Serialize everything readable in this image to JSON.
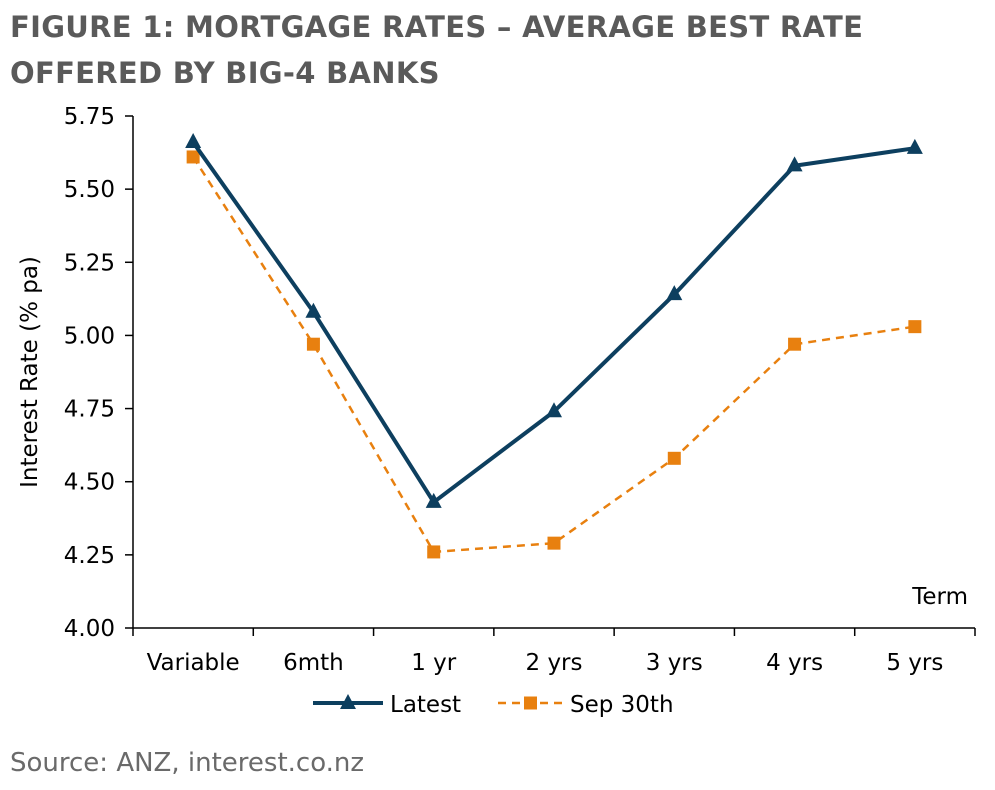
{
  "title": "FIGURE 1: MORTGAGE RATES – AVERAGE BEST RATE OFFERED BY BIG-4 BANKS",
  "source": "Source: ANZ, interest.co.nz",
  "colors": {
    "latest": "#0d3f5f",
    "sep30": "#e8800f",
    "axis": "#000000"
  },
  "chart_data": {
    "type": "line",
    "title": "FIGURE 1: MORTGAGE RATES – AVERAGE BEST RATE OFFERED BY BIG-4 BANKS",
    "xlabel": "Term",
    "ylabel": "Interest Rate (% pa)",
    "categories": [
      "Variable",
      "6mth",
      "1 yr",
      "2 yrs",
      "3 yrs",
      "4 yrs",
      "5 yrs"
    ],
    "ylim": [
      4.0,
      5.75
    ],
    "yticks": [
      "4.00",
      "4.25",
      "4.50",
      "4.75",
      "5.00",
      "5.25",
      "5.50",
      "5.75"
    ],
    "grid": false,
    "legend_position": "bottom",
    "series": [
      {
        "name": "Latest",
        "marker": "triangle",
        "style": "solid",
        "values": [
          5.66,
          5.08,
          4.43,
          4.74,
          5.14,
          5.58,
          5.64
        ]
      },
      {
        "name": "Sep 30th",
        "marker": "square",
        "style": "dashed",
        "values": [
          5.61,
          4.97,
          4.26,
          4.29,
          4.58,
          4.97,
          5.03
        ]
      }
    ]
  }
}
